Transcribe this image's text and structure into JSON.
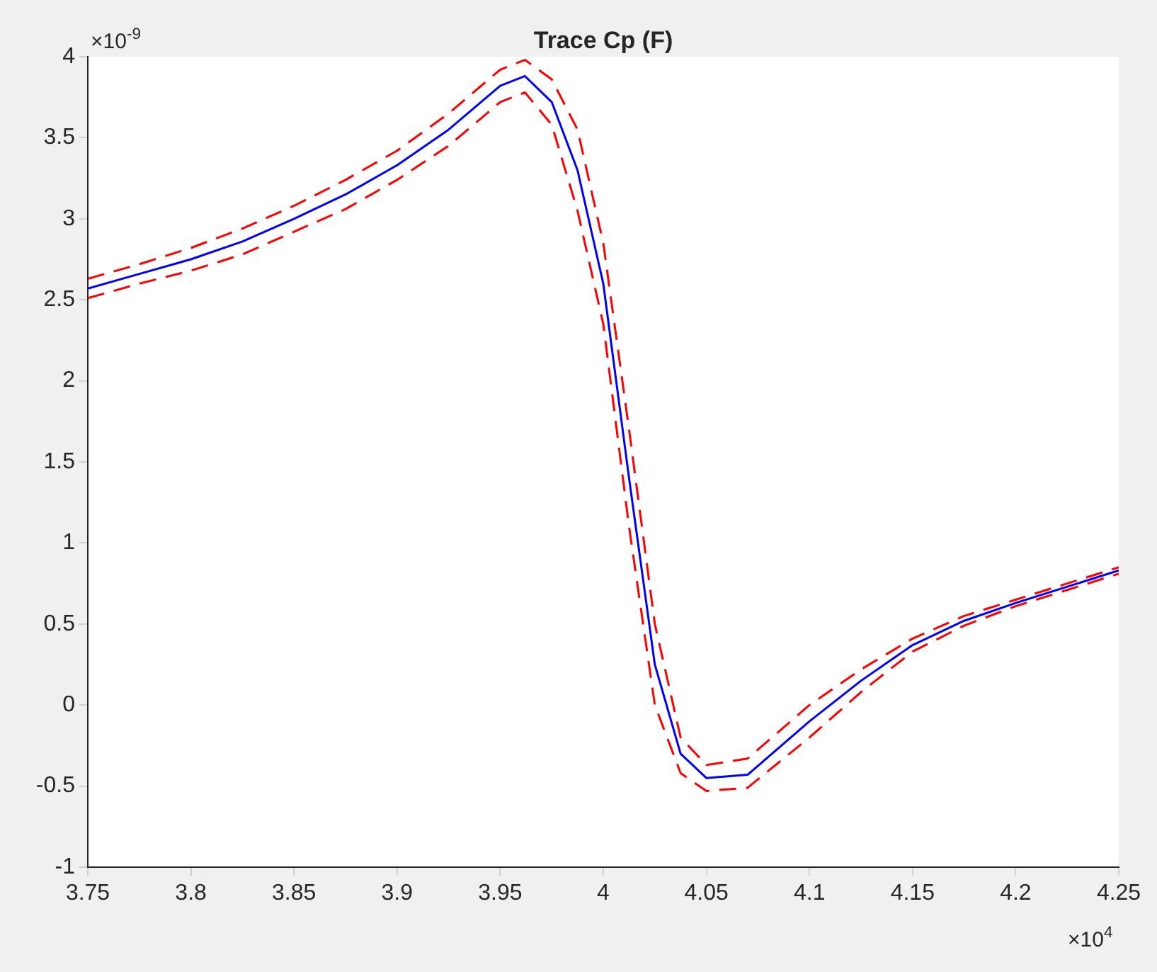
{
  "chart_data": {
    "type": "line",
    "title": "Trace Cp (F)",
    "x": [
      3.75,
      3.775,
      3.8,
      3.825,
      3.85,
      3.875,
      3.9,
      3.925,
      3.95,
      3.962,
      3.975,
      3.9875,
      4.0,
      4.0125,
      4.025,
      4.0375,
      4.05,
      4.07,
      4.1,
      4.125,
      4.15,
      4.175,
      4.2,
      4.225,
      4.25
    ],
    "series": [
      {
        "color": "#0000ff",
        "line_style": "solid",
        "values": [
          2.57,
          2.66,
          2.75,
          2.86,
          3.0,
          3.15,
          3.33,
          3.55,
          3.82,
          3.88,
          3.72,
          3.3,
          2.6,
          1.4,
          0.25,
          -0.3,
          -0.45,
          -0.43,
          -0.1,
          0.15,
          0.37,
          0.52,
          0.63,
          0.73,
          0.83
        ]
      },
      {
        "color": "#ff0000",
        "line_style": "dashed",
        "values": [
          2.63,
          2.72,
          2.82,
          2.94,
          3.08,
          3.24,
          3.42,
          3.65,
          3.92,
          3.98,
          3.86,
          3.55,
          2.85,
          1.7,
          0.5,
          -0.2,
          -0.37,
          -0.33,
          0.0,
          0.22,
          0.41,
          0.55,
          0.65,
          0.75,
          0.85
        ]
      },
      {
        "color": "#ff0000",
        "line_style": "dashed",
        "values": [
          2.51,
          2.6,
          2.68,
          2.78,
          2.92,
          3.06,
          3.24,
          3.45,
          3.72,
          3.78,
          3.58,
          3.05,
          2.35,
          1.1,
          0.0,
          -0.42,
          -0.53,
          -0.51,
          -0.2,
          0.08,
          0.33,
          0.49,
          0.61,
          0.71,
          0.81
        ]
      }
    ],
    "xlim": [
      3.75,
      4.25
    ],
    "xticks": [
      3.75,
      3.8,
      3.85,
      3.9,
      3.95,
      4,
      4.05,
      4.1,
      4.15,
      4.2,
      4.25
    ],
    "ylim": [
      -1,
      4
    ],
    "yticks": [
      -1,
      -0.5,
      0,
      0.5,
      1,
      1.5,
      2,
      2.5,
      3,
      3.5,
      4
    ],
    "annotations": [
      "×10$^{-9}$",
      "×10$^{4}$"
    ],
    "grid": false,
    "legend": false,
    "marker": "none"
  }
}
